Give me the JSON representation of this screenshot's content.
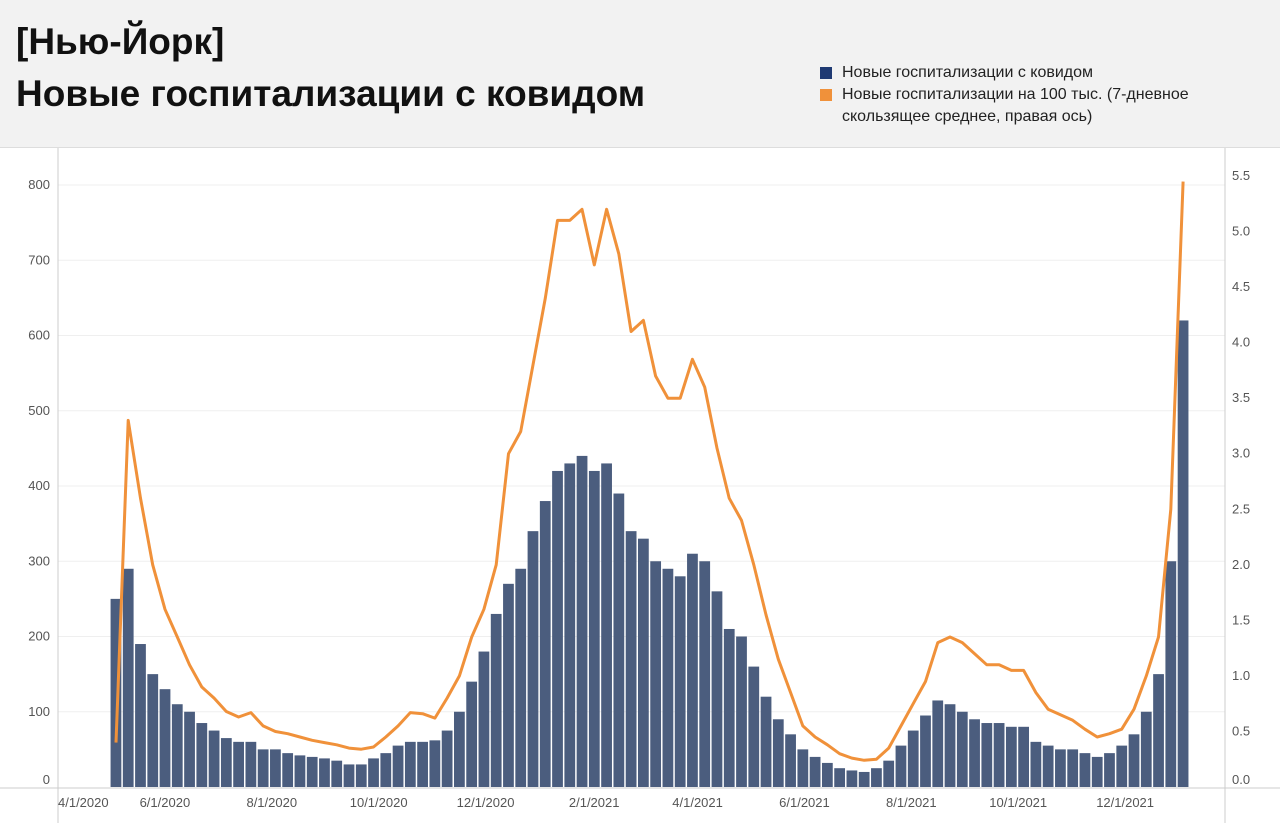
{
  "header": {
    "title_line1": "[Нью-Йорк]",
    "title_line2": "Новые госпитализации с ковидом"
  },
  "chart_data": {
    "type": "bar+line",
    "title": "Новые госпитализации с ковидом",
    "legend_position": "top-right",
    "grid": true,
    "series": [
      {
        "name": "Новые госпитализации с ковидом",
        "type": "bar",
        "axis": "left",
        "color": "#1f3a73",
        "bar_color": "#4b5d7e"
      },
      {
        "name": "Новые госпитализации на 100 тыс. (7-дневное скользящее среднее, правая ось)",
        "type": "line",
        "axis": "right",
        "color": "#f0913a"
      }
    ],
    "y_left": {
      "range": [
        0,
        800
      ],
      "ticks": [
        "0",
        "100",
        "200",
        "300",
        "400",
        "500",
        "600",
        "700",
        "800"
      ]
    },
    "y_right": {
      "range": [
        0,
        5.5
      ],
      "ticks": [
        "0.0",
        "0.5",
        "1.0",
        "1.5",
        "2.0",
        "2.5",
        "3.0",
        "3.5",
        "4.0",
        "4.5",
        "5.0",
        "5.5"
      ]
    },
    "x_ticks": [
      {
        "label": "4/1/2020",
        "date": "2020-04-01"
      },
      {
        "label": "6/1/2020",
        "date": "2020-06-01"
      },
      {
        "label": "8/1/2020",
        "date": "2020-08-01"
      },
      {
        "label": "10/1/2020",
        "date": "2020-10-01"
      },
      {
        "label": "12/1/2020",
        "date": "2020-12-01"
      },
      {
        "label": "2/1/2021",
        "date": "2021-02-01"
      },
      {
        "label": "4/1/2021",
        "date": "2021-04-01"
      },
      {
        "label": "6/1/2021",
        "date": "2021-06-01"
      },
      {
        "label": "8/1/2021",
        "date": "2021-08-01"
      },
      {
        "label": "10/1/2021",
        "date": "2021-10-01"
      },
      {
        "label": "12/1/2021",
        "date": "2021-12-01"
      }
    ],
    "x_range": [
      "2020-04-01",
      "2022-01-27"
    ],
    "weeks_start": "2020-05-01",
    "bars": [
      250,
      290,
      190,
      150,
      130,
      110,
      100,
      85,
      75,
      65,
      60,
      60,
      50,
      50,
      45,
      42,
      40,
      38,
      35,
      30,
      30,
      38,
      45,
      55,
      60,
      60,
      62,
      75,
      100,
      140,
      180,
      230,
      270,
      290,
      340,
      380,
      420,
      430,
      440,
      420,
      430,
      390,
      340,
      330,
      300,
      290,
      280,
      310,
      300,
      260,
      210,
      200,
      160,
      120,
      90,
      70,
      50,
      40,
      32,
      25,
      22,
      20,
      25,
      35,
      55,
      75,
      95,
      115,
      110,
      100,
      90,
      85,
      85,
      80,
      80,
      60,
      55,
      50,
      50,
      45,
      40,
      45,
      55,
      70,
      100,
      150,
      300,
      620
    ],
    "line": [
      0.4,
      3.3,
      2.6,
      2.0,
      1.6,
      1.35,
      1.1,
      0.9,
      0.8,
      0.68,
      0.63,
      0.67,
      0.55,
      0.5,
      0.48,
      0.45,
      0.42,
      0.4,
      0.38,
      0.35,
      0.34,
      0.36,
      0.45,
      0.55,
      0.67,
      0.66,
      0.62,
      0.8,
      1.0,
      1.35,
      1.6,
      2.0,
      3.0,
      3.2,
      3.8,
      4.4,
      5.1,
      5.1,
      5.2,
      4.7,
      5.2,
      4.8,
      4.1,
      4.2,
      3.7,
      3.5,
      3.5,
      3.85,
      3.6,
      3.05,
      2.6,
      2.4,
      2.0,
      1.55,
      1.15,
      0.85,
      0.55,
      0.45,
      0.38,
      0.3,
      0.26,
      0.24,
      0.25,
      0.35,
      0.55,
      0.75,
      0.95,
      1.3,
      1.35,
      1.3,
      1.2,
      1.1,
      1.1,
      1.05,
      1.05,
      0.85,
      0.7,
      0.65,
      0.6,
      0.52,
      0.45,
      0.48,
      0.52,
      0.7,
      1.0,
      1.35,
      2.5,
      5.45
    ]
  }
}
